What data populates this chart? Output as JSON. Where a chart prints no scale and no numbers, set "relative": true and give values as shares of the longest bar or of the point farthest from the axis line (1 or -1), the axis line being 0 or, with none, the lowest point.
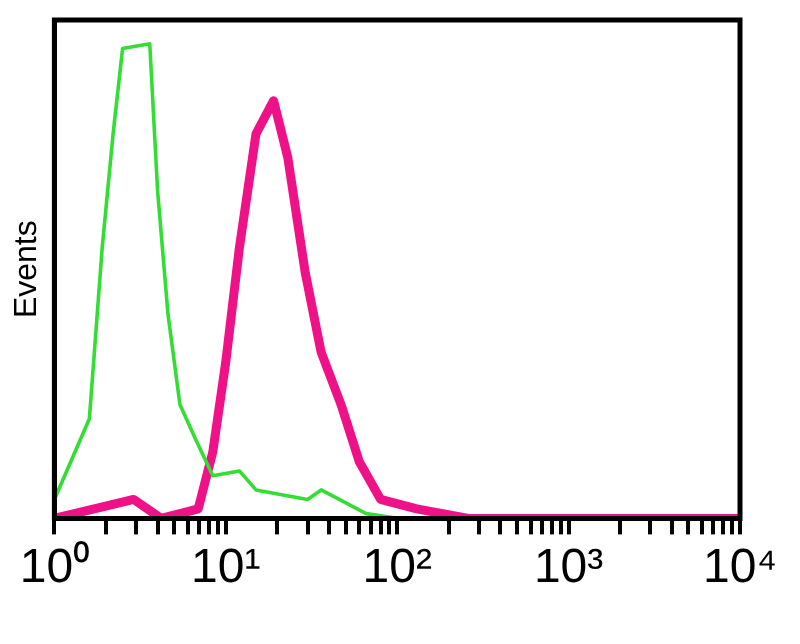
{
  "chart_data": {
    "type": "line",
    "relative": true,
    "ylabel": "Events",
    "log": "x",
    "xlim": [
      1,
      10000
    ],
    "xticks": [
      {
        "value": 1,
        "label": "10⁰"
      },
      {
        "value": 2,
        "label": null
      },
      {
        "value": 3,
        "label": null
      },
      {
        "value": 4,
        "label": null
      },
      {
        "value": 5,
        "label": null
      },
      {
        "value": 6,
        "label": null
      },
      {
        "value": 7,
        "label": null
      },
      {
        "value": 8,
        "label": null
      },
      {
        "value": 9,
        "label": null
      },
      {
        "value": 10,
        "label": "10¹"
      },
      {
        "value": 20,
        "label": null
      },
      {
        "value": 30,
        "label": null
      },
      {
        "value": 40,
        "label": null
      },
      {
        "value": 50,
        "label": null
      },
      {
        "value": 60,
        "label": null
      },
      {
        "value": 70,
        "label": null
      },
      {
        "value": 80,
        "label": null
      },
      {
        "value": 90,
        "label": null
      },
      {
        "value": 100,
        "label": "10²"
      },
      {
        "value": 200,
        "label": null
      },
      {
        "value": 300,
        "label": null
      },
      {
        "value": 400,
        "label": null
      },
      {
        "value": 500,
        "label": null
      },
      {
        "value": 600,
        "label": null
      },
      {
        "value": 700,
        "label": null
      },
      {
        "value": 800,
        "label": null
      },
      {
        "value": 900,
        "label": null
      },
      {
        "value": 1000,
        "label": "10³"
      },
      {
        "value": 2000,
        "label": null
      },
      {
        "value": 3000,
        "label": null
      },
      {
        "value": 4000,
        "label": null
      },
      {
        "value": 5000,
        "label": null
      },
      {
        "value": 6000,
        "label": null
      },
      {
        "value": 7000,
        "label": null
      },
      {
        "value": 8000,
        "label": null
      },
      {
        "value": 9000,
        "label": null
      },
      {
        "value": 10000,
        "label": "10⁴"
      }
    ],
    "grid": false,
    "legend": false,
    "marker": "none",
    "line_style": "solid",
    "series": [
      {
        "color": "#33dd33",
        "x": [
          1,
          1.6,
          1.9,
          2.2,
          2.5,
          3.6,
          4,
          4.6,
          5.4,
          6.6,
          8.4,
          12,
          15,
          30,
          36,
          66,
          100
        ],
        "values": [
          0.04,
          0.21,
          0.57,
          0.81,
          0.99,
          1,
          0.69,
          0.43,
          0.24,
          0.17,
          0.09,
          0.1,
          0.06,
          0.04,
          0.06,
          0.01,
          0
        ]
      },
      {
        "color": "#ee1188",
        "x": [
          1,
          2.9,
          4.2,
          6.9,
          8.4,
          10,
          12,
          15,
          19,
          23,
          29,
          36,
          47,
          60,
          80,
          130,
          260,
          10000
        ],
        "values": [
          0,
          0.04,
          0,
          0.02,
          0.14,
          0.33,
          0.57,
          0.81,
          0.88,
          0.76,
          0.52,
          0.35,
          0.24,
          0.12,
          0.04,
          0.02,
          0,
          0
        ]
      }
    ]
  }
}
